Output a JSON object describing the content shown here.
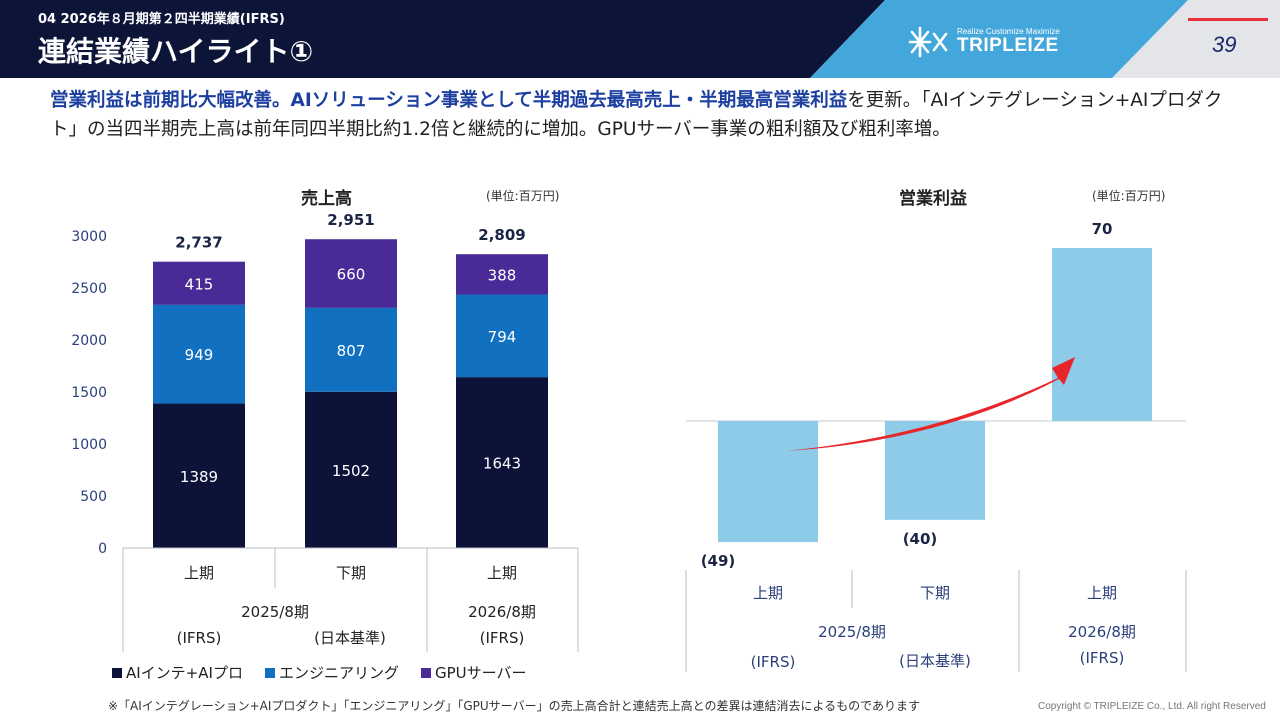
{
  "header": {
    "subtitle": "04 2026年８月期第２四半期業績(IFRS)",
    "title": "連結業績ハイライト①",
    "logo_tagline": "Realize Customize Maximize",
    "logo_name": "TRIPLEIZE",
    "page_number": "39"
  },
  "lead": {
    "highlight": "営業利益は前期比大幅改善。AIソリューション事業として半期過去最高売上・半期最高営業利益",
    "rest": "を更新。「AIインテグレーション+AIプロダクト」の当四半期売上高は前年同四半期比約1.2倍と継続的に増加。GPUサーバー事業の粗利額及び粗利率増。"
  },
  "colors": {
    "header_dark": "#0c1538",
    "header_blue": "#44a7dc",
    "header_gray": "#e3e5e8",
    "ai": "#0c1238",
    "engineering": "#1270c0",
    "gpu": "#4a2a96",
    "op_bar": "#8ecbe9",
    "arrow": "#e8252b",
    "highlight": "#1d3fa0"
  },
  "chart_data": [
    {
      "type": "bar",
      "stacked": true,
      "title": "売上高",
      "unit_label": "(単位:百万円)",
      "categories": [
        "上期",
        "下期",
        "上期"
      ],
      "groups": [
        {
          "year": "2025/8期",
          "standards": [
            "(IFRS)",
            "(日本基準)"
          ],
          "span": 2
        },
        {
          "year": "2026/8期",
          "standards": [
            "(IFRS)"
          ],
          "span": 1
        }
      ],
      "series": [
        {
          "name": "AIインテ+AIプロ",
          "color_key": "ai",
          "values": [
            1389,
            1502,
            1643
          ]
        },
        {
          "name": "エンジニアリング",
          "color_key": "engineering",
          "values": [
            949,
            807,
            794
          ]
        },
        {
          "name": "GPUサーバー",
          "color_key": "gpu",
          "values": [
            415,
            660,
            388
          ]
        }
      ],
      "totals": [
        "2,737",
        "2,951",
        "2,809"
      ],
      "ylim": [
        0,
        3000
      ],
      "yticks": [
        0,
        500,
        1000,
        1500,
        2000,
        2500,
        3000
      ]
    },
    {
      "type": "bar",
      "title": "営業利益",
      "unit_label": "(単位:百万円)",
      "categories": [
        "上期",
        "下期",
        "上期"
      ],
      "groups": [
        {
          "year": "2025/8期",
          "standards": [
            "(IFRS)",
            "(日本基準)"
          ],
          "span": 2
        },
        {
          "year": "2026/8期",
          "standards": [
            "(IFRS)"
          ],
          "span": 1
        }
      ],
      "values": [
        -49,
        -40,
        70
      ],
      "value_labels": [
        "(49)",
        "(40)",
        "70"
      ],
      "ylim": [
        -50,
        70
      ]
    }
  ],
  "footnote": "※「AIインテグレーション+AIプロダクト」「エンジニアリング」「GPUサーバー」の売上高合計と連結売上高との差異は連結消去によるものであります",
  "copyright": "Copyright © TRIPLEIZE Co., Ltd.  All right Reserved"
}
